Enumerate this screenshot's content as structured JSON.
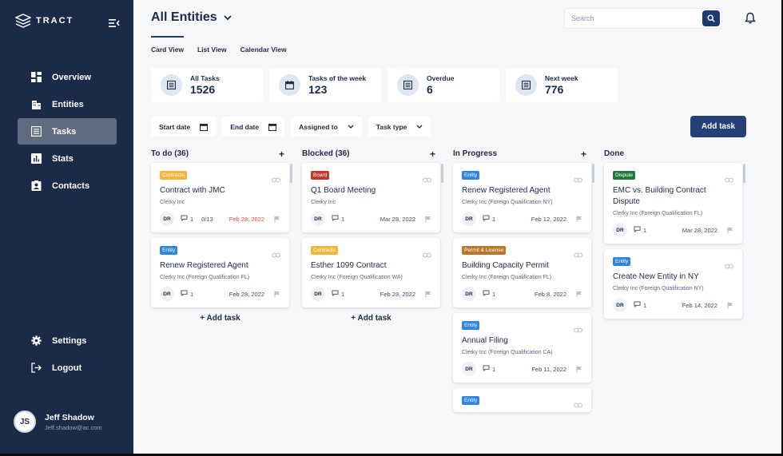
{
  "app": {
    "brand": "TRACT",
    "nav": [
      {
        "label": "Overview",
        "icon": "dashboard-icon"
      },
      {
        "label": "Entities",
        "icon": "building-icon"
      },
      {
        "label": "Tasks",
        "icon": "tasks-icon"
      },
      {
        "label": "Stats",
        "icon": "bar-chart-icon"
      },
      {
        "label": "Contacts",
        "icon": "contact-icon"
      }
    ],
    "nav_bottom": [
      {
        "label": "Settings",
        "icon": "gear-icon"
      },
      {
        "label": "Logout",
        "icon": "logout-icon"
      }
    ],
    "user": {
      "initials": "JS",
      "name": "Jeff Shadow",
      "email": "Jeff.shadow@ac.com"
    }
  },
  "header": {
    "title": "All Entities",
    "search_placeholder": "Search"
  },
  "tabs": [
    "Card View",
    "List View",
    "Calendar View"
  ],
  "stats": [
    {
      "label": "All Tasks",
      "value": "1526"
    },
    {
      "label": "Tasks of the week",
      "value": "123"
    },
    {
      "label": "Overdue",
      "value": "6"
    },
    {
      "label": "Next week",
      "value": "776"
    }
  ],
  "filters": [
    "Start date",
    "End date",
    "Assigned to",
    "Task type"
  ],
  "add_task_label": "Add task",
  "colors": {
    "sidebar": "#1b2a47",
    "accent": "#253f77",
    "badge_contracts": "#f4b53f",
    "badge_entity": "#2f86de",
    "badge_board": "#c0392b",
    "badge_permit": "#b9772b",
    "badge_dispute": "#1f7a3a",
    "overdue": "#e24444"
  },
  "columns": [
    {
      "title": "To do (36)",
      "plus": "+",
      "add": "+ Add task",
      "cards": [
        {
          "badge": "Contracts",
          "title": "Contract with JMC",
          "sub": "Clerky Inc",
          "assignee": "DR",
          "comments": "1",
          "subtasks": "0/13",
          "date": "Feb 28, 2022",
          "overdue": true
        },
        {
          "badge": "Entity",
          "title": "Renew Registered Agent",
          "sub": "Clerky Inc (Foreign Qualification FL)",
          "assignee": "DR",
          "comments": "1",
          "subtasks": "",
          "date": "Feb 28, 2022",
          "overdue": false
        }
      ]
    },
    {
      "title": "Blocked (36)",
      "plus": "+",
      "add": "+ Add task",
      "cards": [
        {
          "badge": "Board",
          "title": "Q1 Board Meeting",
          "sub": "Clerky Inc",
          "assignee": "DR",
          "comments": "1",
          "subtasks": "",
          "date": "Mar 28, 2022",
          "overdue": false
        },
        {
          "badge": "Contracts",
          "title": "Esther 1099 Contract",
          "sub": "Clerky Inc (Foreign Qualification WA)",
          "assignee": "DR",
          "comments": "1",
          "subtasks": "",
          "date": "Feb 28, 2022",
          "overdue": false
        }
      ]
    },
    {
      "title": "In Progress",
      "plus": "+",
      "add": "",
      "cards": [
        {
          "badge": "Entity",
          "title": "Renew Registered Agent",
          "sub": "Clerky Inc (Foreign Qualification NY)",
          "assignee": "DR",
          "comments": "1",
          "subtasks": "",
          "date": "Feb 12, 2022",
          "overdue": false
        },
        {
          "badge": "Permit & License",
          "title": "Building Capacity Permit",
          "sub": "Clerky Inc (Foreign Qualification FL)",
          "assignee": "DR",
          "comments": "1",
          "subtasks": "",
          "date": "Feb 8, 2022",
          "overdue": false
        },
        {
          "badge": "Entity",
          "title": "Annual Filing",
          "sub": "Clerky Inc (Foreign Qualification CA)",
          "assignee": "DR",
          "comments": "1",
          "subtasks": "",
          "date": "Feb 11, 2022",
          "overdue": false
        },
        {
          "badge": "Entity",
          "title": "",
          "sub": "",
          "assignee": "",
          "comments": "",
          "subtasks": "",
          "date": "",
          "overdue": false
        }
      ]
    },
    {
      "title": "Done",
      "plus": "",
      "add": "",
      "cards": [
        {
          "badge": "Dispute",
          "title": "EMC vs. Building Contract Dispute",
          "sub": "Clerky Inc (Foreign Qualification FL)",
          "assignee": "DR",
          "comments": "1",
          "subtasks": "",
          "date": "Mar 28, 2022",
          "overdue": false
        },
        {
          "badge": "Entity",
          "title": "Create New Entity in NY",
          "sub": "Clerky Inc (Foreign Qualification NY)",
          "assignee": "DR",
          "comments": "1",
          "subtasks": "",
          "date": "Feb 14, 2022",
          "overdue": false
        }
      ]
    }
  ]
}
